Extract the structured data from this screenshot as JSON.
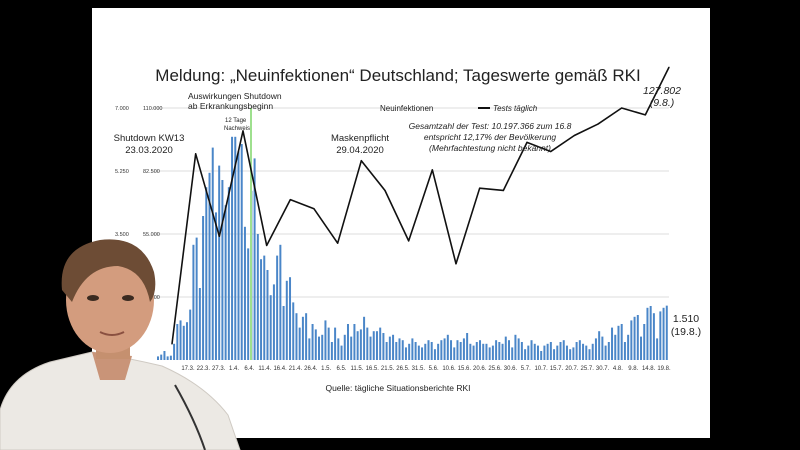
{
  "slide": {
    "title": "Meldung: „Neuinfektionen“ Deutschland; Tageswerte gemäß RKI",
    "source": "Quelle: tägliche Situationsberichte RKI"
  },
  "annotations": {
    "shutdown_effect_line1": "Auswirkungen Shutdown",
    "shutdown_effect_line2": "ab Erkrankungsbeginn",
    "days_line1": "12 Tage",
    "days_line2": "Nachweis",
    "shutdown_line1": "Shutdown KW13",
    "shutdown_line2": "23.03.2020",
    "mask_line1": "Maskenpflicht",
    "mask_line2": "29.04.2020",
    "tests_line1": "Gesamtzahl der Test: 10.197.366 zum 16.8",
    "tests_line2": "entspricht 12,17% der Bevölkerung",
    "tests_line3": "(Mehrfachtestung nicht bekannt)",
    "last_tests_value": "127.802",
    "last_tests_date": "(9.8.)",
    "last_cases_value": "1.510",
    "last_cases_date": "(19.8.)"
  },
  "chart_data": {
    "type": "bar",
    "title": "Meldung: „Neuinfektionen“ Deutschland; Tageswerte gemäß RKI",
    "legend": {
      "bars": "Neuinfektionen",
      "line": "Tests täglich",
      "placement": "top"
    },
    "y_left_ticks": [
      "7.000",
      "5.250",
      "3.500",
      "1.750"
    ],
    "y_left_range": [
      0,
      7000
    ],
    "y_right_ticks": [
      "110.000",
      "82.500",
      "55.000",
      "27.500"
    ],
    "y_right_range": [
      0,
      110000
    ],
    "x_tick_labels": [
      "17.3.",
      "22.3.",
      "27.3.",
      "1.4.",
      "6.4.",
      "11.4.",
      "16.4.",
      "21.4.",
      "26.4.",
      "1.5.",
      "6.5.",
      "11.5.",
      "16.5.",
      "21.5.",
      "26.5.",
      "31.5.",
      "5.6.",
      "10.6.",
      "15.6.",
      "20.6.",
      "25.6.",
      "30.6.",
      "5.7.",
      "10.7.",
      "15.7.",
      "20.7.",
      "25.7.",
      "30.7.",
      "4.8.",
      "9.8.",
      "14.8.",
      "19.8."
    ],
    "grid": true,
    "bars": {
      "name": "Neuinfektionen",
      "start_date": "2020-03-12",
      "end_date": "2020-08-19",
      "values": [
        100,
        150,
        250,
        100,
        120,
        450,
        1000,
        1100,
        950,
        1050,
        1400,
        3200,
        3400,
        2000,
        4000,
        4800,
        5200,
        5900,
        4100,
        5400,
        5000,
        4300,
        4800,
        6200,
        6200,
        5800,
        6000,
        3700,
        3100,
        4700,
        5600,
        3500,
        2800,
        2900,
        2500,
        1800,
        2100,
        2900,
        3200,
        1500,
        2200,
        2300,
        1600,
        1300,
        900,
        1200,
        1300,
        600,
        1000,
        850,
        650,
        700,
        1100,
        900,
        500,
        900,
        600,
        400,
        700,
        1000,
        650,
        1000,
        800,
        850,
        1200,
        900,
        650,
        800,
        800,
        900,
        750,
        500,
        650,
        700,
        500,
        600,
        550,
        350,
        450,
        600,
        500,
        400,
        350,
        450,
        550,
        500,
        300,
        450,
        550,
        600,
        700,
        550,
        350,
        550,
        500,
        600,
        750,
        450,
        400,
        500,
        550,
        450,
        450,
        350,
        400,
        550,
        500,
        450,
        650,
        550,
        350,
        700,
        600,
        500,
        300,
        400,
        550,
        450,
        400,
        250,
        400,
        450,
        500,
        300,
        400,
        500,
        550,
        400,
        300,
        350,
        500,
        550,
        450,
        400,
        300,
        450,
        600,
        800,
        650,
        400,
        500,
        900,
        700,
        950,
        1000,
        500,
        700,
        1100,
        1200,
        1250,
        650,
        1000,
        1450,
        1500,
        1300,
        600,
        1350,
        1450,
        1510
      ]
    },
    "line": {
      "name": "Tests täglich",
      "points": [
        {
          "week": 11,
          "tests": 7000
        },
        {
          "week": 12,
          "tests": 90000
        },
        {
          "week": 13,
          "tests": 54000
        },
        {
          "week": 14,
          "tests": 100000
        },
        {
          "week": 15,
          "tests": 50000
        },
        {
          "week": 16,
          "tests": 70000
        },
        {
          "week": 17,
          "tests": 66000
        },
        {
          "week": 18,
          "tests": 51000
        },
        {
          "week": 19,
          "tests": 87000
        },
        {
          "week": 20,
          "tests": 74000
        },
        {
          "week": 21,
          "tests": 52000
        },
        {
          "week": 22,
          "tests": 83000
        },
        {
          "week": 23,
          "tests": 42000
        },
        {
          "week": 24,
          "tests": 75000
        },
        {
          "week": 25,
          "tests": 74000
        },
        {
          "week": 26,
          "tests": 95000
        },
        {
          "week": 27,
          "tests": 91000
        },
        {
          "week": 28,
          "tests": 98000
        },
        {
          "week": 29,
          "tests": 103000
        },
        {
          "week": 30,
          "tests": 110000
        },
        {
          "week": 31,
          "tests": 107000
        },
        {
          "week": 32,
          "tests": 127802
        }
      ]
    }
  }
}
